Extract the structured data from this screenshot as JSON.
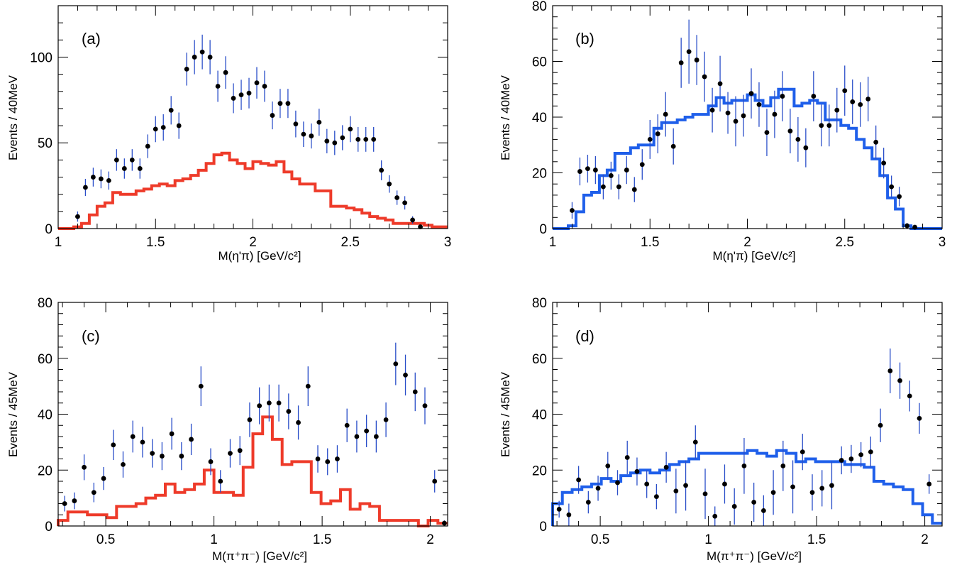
{
  "chart_data": [
    {
      "panel": "(a)",
      "type": "histogram+points",
      "xlabel": "M(η'π) [GeV/c²]",
      "ylabel": "Events / 40MeV",
      "xlim": [
        1,
        3
      ],
      "ylim": [
        0,
        130
      ],
      "xticks": [
        1,
        1.5,
        2,
        2.5,
        3
      ],
      "xtick_labels": [
        "1",
        "1.5",
        "2",
        "2.5",
        "3"
      ],
      "yticks": [
        0,
        50,
        100
      ],
      "ytick_labels": [
        "0",
        "50",
        "100"
      ],
      "hist_color": "#ee3b2a",
      "data_points": {
        "x": [
          1.1,
          1.14,
          1.18,
          1.22,
          1.26,
          1.3,
          1.34,
          1.38,
          1.42,
          1.46,
          1.5,
          1.54,
          1.58,
          1.62,
          1.66,
          1.7,
          1.74,
          1.78,
          1.82,
          1.86,
          1.9,
          1.94,
          1.98,
          2.02,
          2.06,
          2.1,
          2.14,
          2.18,
          2.22,
          2.26,
          2.3,
          2.34,
          2.38,
          2.42,
          2.46,
          2.5,
          2.54,
          2.58,
          2.62,
          2.66,
          2.7,
          2.74,
          2.78,
          2.82,
          2.86
        ],
        "y": [
          7,
          24,
          30,
          29,
          28,
          40,
          35,
          40,
          35,
          48,
          58,
          59,
          69,
          60,
          93,
          100,
          103,
          100,
          83,
          91,
          76,
          78,
          79,
          85,
          83,
          66,
          73,
          73,
          61,
          55,
          54,
          62,
          51,
          50,
          53,
          58,
          52,
          52,
          52,
          34,
          26,
          18,
          15,
          5,
          1
        ],
        "err": [
          3,
          5,
          5.5,
          5.5,
          5.3,
          6.3,
          5.9,
          6.3,
          5.9,
          6.9,
          7.6,
          7.7,
          8.3,
          7.7,
          9.6,
          10,
          10.1,
          10,
          9.1,
          9.5,
          8.7,
          8.8,
          8.9,
          9.2,
          9.1,
          8.1,
          8.5,
          8.5,
          7.8,
          7.4,
          7.3,
          7.9,
          7.1,
          7.1,
          7.3,
          7.6,
          7.2,
          7.2,
          7.2,
          5.8,
          5.1,
          4.2,
          3.9,
          2.2,
          1
        ]
      },
      "histogram": {
        "edges": [
          1,
          1.04,
          1.08,
          1.12,
          1.16,
          1.2,
          1.24,
          1.28,
          1.32,
          1.36,
          1.4,
          1.44,
          1.48,
          1.52,
          1.56,
          1.6,
          1.64,
          1.68,
          1.72,
          1.76,
          1.8,
          1.84,
          1.88,
          1.92,
          1.96,
          2.0,
          2.04,
          2.08,
          2.12,
          2.16,
          2.2,
          2.24,
          2.28,
          2.32,
          2.36,
          2.4,
          2.44,
          2.48,
          2.52,
          2.56,
          2.6,
          2.64,
          2.68,
          2.72,
          2.76,
          2.8,
          2.84,
          2.88,
          2.92,
          2.96,
          3.0
        ],
        "values": [
          0,
          0,
          1,
          3,
          8,
          13,
          15,
          21,
          20,
          20,
          22,
          23,
          25,
          26,
          25,
          28,
          29,
          31,
          34,
          38,
          43,
          44,
          40,
          38,
          35,
          39,
          38,
          37,
          39,
          33,
          29,
          26,
          26,
          22,
          22,
          13,
          13,
          12,
          11,
          9,
          7,
          6,
          5,
          3,
          3,
          3,
          3,
          2,
          1,
          1
        ]
      }
    },
    {
      "panel": "(b)",
      "type": "histogram+points",
      "xlabel": "M(η'π) [GeV/c²]",
      "ylabel": "Events / 40MeV",
      "xlim": [
        1,
        3
      ],
      "ylim": [
        0,
        80
      ],
      "xticks": [
        1,
        1.5,
        2,
        2.5,
        3
      ],
      "xtick_labels": [
        "1",
        "1.5",
        "2",
        "2.5",
        "3"
      ],
      "yticks": [
        0,
        20,
        40,
        60,
        80
      ],
      "ytick_labels": [
        "0",
        "20",
        "40",
        "60",
        "80"
      ],
      "hist_color": "#1f5fea",
      "data_points": {
        "x": [
          1.1,
          1.14,
          1.18,
          1.22,
          1.26,
          1.3,
          1.34,
          1.38,
          1.42,
          1.46,
          1.5,
          1.54,
          1.58,
          1.62,
          1.66,
          1.7,
          1.74,
          1.78,
          1.82,
          1.86,
          1.9,
          1.94,
          1.98,
          2.02,
          2.06,
          2.1,
          2.14,
          2.18,
          2.22,
          2.26,
          2.3,
          2.34,
          2.38,
          2.42,
          2.46,
          2.5,
          2.54,
          2.58,
          2.62,
          2.66,
          2.7,
          2.74,
          2.78,
          2.82,
          2.86
        ],
        "y": [
          6.5,
          20.5,
          21.5,
          21,
          15,
          19,
          15,
          21,
          14,
          23,
          32,
          34,
          41,
          29.5,
          59.5,
          63.5,
          60.5,
          54.5,
          42.5,
          52,
          41.5,
          38.5,
          40.5,
          48.5,
          44.5,
          34.5,
          41,
          47.5,
          35,
          32,
          29,
          47.5,
          37,
          37,
          42.5,
          49.5,
          45.5,
          44.5,
          46.5,
          31,
          23.5,
          15,
          11.5,
          1,
          0.5
        ],
        "err": [
          3,
          5,
          5,
          5,
          4.5,
          5,
          4.5,
          5,
          4.5,
          5.5,
          7,
          7,
          8,
          6.5,
          9,
          11.5,
          9,
          9,
          8,
          10,
          7.5,
          9,
          7.5,
          9,
          8,
          8.5,
          8.5,
          9,
          8,
          8,
          7,
          9,
          7.5,
          7.5,
          8,
          9,
          8,
          8,
          8,
          6,
          5.5,
          4,
          3.5,
          1,
          0.5
        ]
      },
      "histogram": {
        "edges": [
          1,
          1.04,
          1.08,
          1.12,
          1.16,
          1.2,
          1.24,
          1.28,
          1.32,
          1.36,
          1.4,
          1.44,
          1.48,
          1.52,
          1.56,
          1.6,
          1.64,
          1.68,
          1.72,
          1.76,
          1.8,
          1.84,
          1.88,
          1.92,
          1.96,
          2.0,
          2.04,
          2.08,
          2.12,
          2.16,
          2.2,
          2.24,
          2.28,
          2.32,
          2.36,
          2.4,
          2.44,
          2.48,
          2.52,
          2.56,
          2.6,
          2.64,
          2.68,
          2.72,
          2.76,
          2.8,
          2.84,
          2.88,
          2.92,
          2.96,
          3.0
        ],
        "values": [
          0,
          0,
          1,
          6,
          12,
          13,
          19,
          21,
          27,
          27,
          29,
          30,
          30,
          36,
          38,
          38,
          39,
          40,
          41,
          41,
          44,
          47,
          45,
          46,
          46,
          48,
          46,
          44,
          47,
          50,
          50,
          44,
          45,
          46,
          45,
          39,
          39,
          37,
          36,
          32,
          29,
          25,
          19,
          11,
          7,
          1,
          0,
          0,
          0,
          0
        ]
      }
    },
    {
      "panel": "(c)",
      "type": "histogram+points",
      "xlabel": "M(π⁺π⁻) [GeV/c²]",
      "ylabel": "Events / 45MeV",
      "xlim": [
        0.28,
        2.08
      ],
      "ylim": [
        0,
        80
      ],
      "xticks": [
        0.5,
        1,
        1.5,
        2
      ],
      "xtick_labels": [
        "0.5",
        "1",
        "1.5",
        "2"
      ],
      "yticks": [
        0,
        20,
        40,
        60,
        80
      ],
      "ytick_labels": [
        "0",
        "20",
        "40",
        "60",
        "80"
      ],
      "hist_color": "#ee3b2a",
      "data_points": {
        "x": [
          0.31,
          0.355,
          0.4,
          0.445,
          0.49,
          0.535,
          0.58,
          0.625,
          0.67,
          0.715,
          0.76,
          0.805,
          0.85,
          0.895,
          0.94,
          0.985,
          1.03,
          1.075,
          1.12,
          1.165,
          1.21,
          1.255,
          1.3,
          1.345,
          1.39,
          1.435,
          1.48,
          1.525,
          1.57,
          1.615,
          1.66,
          1.705,
          1.75,
          1.795,
          1.84,
          1.885,
          1.93,
          1.975,
          2.02,
          2.065
        ],
        "y": [
          8,
          9,
          21,
          12,
          17,
          29,
          22,
          32,
          30,
          26,
          25,
          33,
          25,
          31,
          50,
          23,
          16,
          26,
          27,
          38,
          43,
          44,
          44,
          41,
          37,
          50,
          24,
          23,
          24,
          36,
          32,
          34,
          32,
          38,
          58,
          54,
          48,
          43,
          16,
          1
        ],
        "err": [
          2.8,
          3,
          4.6,
          3.5,
          4.1,
          5.4,
          4.7,
          5.7,
          5.5,
          5.1,
          5,
          5.7,
          5,
          5.6,
          7.1,
          4.8,
          4,
          5.1,
          5.2,
          6.2,
          6.6,
          6.6,
          6.6,
          6.4,
          6.1,
          7.1,
          4.9,
          4.8,
          4.9,
          6,
          5.7,
          5.8,
          5.7,
          6.2,
          7.6,
          7.3,
          6.9,
          6.6,
          4,
          1
        ]
      },
      "histogram": {
        "edges": [
          0.28,
          0.325,
          0.37,
          0.415,
          0.46,
          0.505,
          0.55,
          0.595,
          0.64,
          0.685,
          0.73,
          0.775,
          0.82,
          0.865,
          0.91,
          0.955,
          1.0,
          1.045,
          1.09,
          1.135,
          1.18,
          1.225,
          1.27,
          1.315,
          1.36,
          1.405,
          1.45,
          1.495,
          1.54,
          1.585,
          1.63,
          1.675,
          1.72,
          1.765,
          1.81,
          1.855,
          1.9,
          1.945,
          1.99,
          2.035,
          2.08
        ],
        "values": [
          2,
          5,
          5,
          4,
          4,
          3,
          7,
          7,
          8,
          10,
          11,
          15,
          12,
          13,
          15,
          20,
          12,
          12,
          11,
          21,
          33,
          39,
          31,
          22,
          23,
          23,
          12,
          8,
          9,
          13,
          6,
          8,
          7,
          2,
          2,
          2,
          2,
          0,
          2,
          1
        ]
      }
    },
    {
      "panel": "(d)",
      "type": "histogram+points",
      "xlabel": "M(π⁺π⁻) [GeV/c²]",
      "ylabel": "Events / 45MeV",
      "xlim": [
        0.28,
        2.08
      ],
      "ylim": [
        0,
        80
      ],
      "xticks": [
        0.5,
        1,
        1.5,
        2
      ],
      "xtick_labels": [
        "0.5",
        "1",
        "1.5",
        "2"
      ],
      "yticks": [
        0,
        20,
        40,
        60,
        80
      ],
      "ytick_labels": [
        "0",
        "20",
        "40",
        "60",
        "80"
      ],
      "hist_color": "#1f5fea",
      "data_points": {
        "x": [
          0.31,
          0.355,
          0.4,
          0.445,
          0.49,
          0.535,
          0.58,
          0.625,
          0.67,
          0.715,
          0.76,
          0.805,
          0.85,
          0.895,
          0.94,
          0.985,
          1.03,
          1.075,
          1.12,
          1.165,
          1.21,
          1.255,
          1.3,
          1.345,
          1.39,
          1.435,
          1.48,
          1.525,
          1.57,
          1.615,
          1.66,
          1.705,
          1.75,
          1.795,
          1.84,
          1.885,
          1.93,
          1.975,
          2.02
        ],
        "y": [
          6,
          4,
          16.5,
          8.5,
          13.5,
          21.5,
          15.5,
          24.5,
          19.5,
          15,
          10.5,
          21,
          12.5,
          14.5,
          30,
          11.5,
          3.5,
          15,
          7,
          21.5,
          8.5,
          5.5,
          12,
          21.5,
          14,
          26.5,
          12,
          13.5,
          14.5,
          23.5,
          24,
          25.5,
          26.5,
          36,
          55.5,
          52,
          46.5,
          38.5,
          15
        ],
        "err": [
          3,
          4,
          5,
          4,
          4.5,
          5,
          4.5,
          6,
          5,
          5,
          4.5,
          5.5,
          8,
          9,
          6,
          9,
          3.5,
          7,
          6.5,
          10,
          7,
          5.5,
          8,
          9,
          9.5,
          6.5,
          6.5,
          6.5,
          8.5,
          5,
          5,
          4.5,
          5.5,
          6,
          8,
          6.5,
          5.5,
          5.5,
          3.5
        ]
      },
      "histogram": {
        "edges": [
          0.28,
          0.325,
          0.37,
          0.415,
          0.46,
          0.505,
          0.55,
          0.595,
          0.64,
          0.685,
          0.73,
          0.775,
          0.82,
          0.865,
          0.91,
          0.955,
          1.0,
          1.045,
          1.09,
          1.135,
          1.18,
          1.225,
          1.27,
          1.315,
          1.36,
          1.405,
          1.45,
          1.495,
          1.54,
          1.585,
          1.63,
          1.675,
          1.72,
          1.765,
          1.81,
          1.855,
          1.9,
          1.945,
          1.99,
          2.035,
          2.08
        ],
        "values": [
          8,
          12,
          13,
          14,
          15,
          17,
          16,
          18,
          19,
          20,
          19,
          20,
          22,
          23,
          24,
          26,
          26,
          26,
          26,
          26,
          27,
          26,
          25,
          27,
          26,
          23,
          24,
          23,
          23,
          23,
          22,
          22,
          21,
          16,
          15,
          14,
          13,
          8,
          4,
          1
        ]
      }
    }
  ]
}
